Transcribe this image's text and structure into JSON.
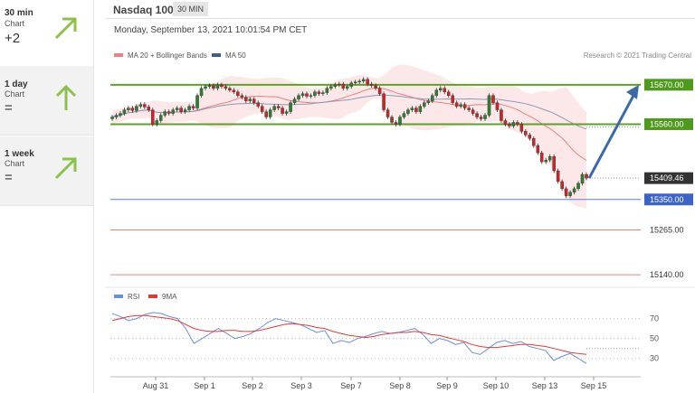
{
  "sidebar": {
    "items": [
      {
        "period": "30 min",
        "type": "Chart",
        "value": "+2",
        "direction": "up-right",
        "color": "#8bc34a"
      },
      {
        "period": "1 day",
        "type": "Chart",
        "value": "=",
        "direction": "up",
        "color": "#8bc34a"
      },
      {
        "period": "1 week",
        "type": "Chart",
        "value": "=",
        "direction": "up-right",
        "color": "#8bc34a"
      }
    ]
  },
  "header": {
    "title": "Nasdaq 100",
    "interval": "30 MIN",
    "datetime": "Monday, September 13, 2021 10:01:54 PM CET"
  },
  "chart_data": [
    {
      "type": "candlestick",
      "legend": [
        {
          "name": "MA 20 + Bollinger Bands",
          "color": "#f08080"
        },
        {
          "name": "MA 50",
          "color": "#3a5ba0"
        }
      ],
      "credit": "Research © 2021 Trading Central",
      "x_tick_labels": [
        "Aug 31",
        "Sep 1",
        "Sep 2",
        "Sep 3",
        "Sep 7",
        "Sep 8",
        "Sep 9",
        "Sep 10",
        "Sep 13",
        "Sep 15"
      ],
      "ylim": [
        15115,
        15725
      ],
      "levels": [
        {
          "label": "15670.00",
          "value": 15670,
          "kind": "resistance",
          "color": "#5aa51f"
        },
        {
          "label": "15560.00",
          "value": 15560,
          "kind": "resistance",
          "color": "#5aa51f"
        },
        {
          "label": "15409.46",
          "value": 15409.46,
          "kind": "last-price",
          "color": "#333333"
        },
        {
          "label": "15350.00",
          "value": 15350,
          "kind": "support",
          "color": "#5b7fd6"
        },
        {
          "label": "15265.00",
          "value": 15265,
          "kind": "support",
          "color": "#f08080"
        },
        {
          "label": "15140.00",
          "value": 15140,
          "kind": "support",
          "color": "#f08080"
        }
      ],
      "target_arrow": {
        "from": 15409.46,
        "to": 15670,
        "color": "#3a6aa8"
      },
      "close": [
        15580,
        15585,
        15590,
        15600,
        15605,
        15598,
        15610,
        15615,
        15608,
        15600,
        15560,
        15570,
        15585,
        15595,
        15590,
        15600,
        15605,
        15595,
        15600,
        15610,
        15605,
        15640,
        15660,
        15665,
        15668,
        15660,
        15670,
        15665,
        15660,
        15655,
        15650,
        15640,
        15635,
        15625,
        15630,
        15620,
        15610,
        15595,
        15580,
        15600,
        15610,
        15605,
        15590,
        15595,
        15620,
        15630,
        15640,
        15645,
        15638,
        15640,
        15650,
        15645,
        15648,
        15660,
        15665,
        15670,
        15672,
        15660,
        15665,
        15675,
        15678,
        15680,
        15685,
        15672,
        15668,
        15660,
        15645,
        15600,
        15580,
        15565,
        15560,
        15580,
        15590,
        15600,
        15605,
        15595,
        15610,
        15620,
        15625,
        15640,
        15655,
        15660,
        15650,
        15640,
        15620,
        15610,
        15615,
        15605,
        15600,
        15590,
        15580,
        15575,
        15585,
        15640,
        15620,
        15600,
        15570,
        15560,
        15555,
        15565,
        15560,
        15540,
        15530,
        15520,
        15500,
        15480,
        15455,
        15460,
        15470,
        15430,
        15400,
        15380,
        15360,
        15370,
        15380,
        15395,
        15420,
        15409.46
      ]
    },
    {
      "type": "line",
      "legend": [
        {
          "name": "RSI",
          "color": "#6b8fe0"
        },
        {
          "name": "9MA",
          "color": "#e53935"
        }
      ],
      "ylim": [
        18,
        85
      ],
      "y_tick_labels": [
        "70",
        "50",
        "30"
      ],
      "y_ticks": [
        70,
        50,
        30
      ],
      "series": [
        {
          "name": "RSI",
          "values": [
            75,
            72,
            68,
            70,
            74,
            76,
            75,
            72,
            70,
            60,
            45,
            50,
            55,
            60,
            55,
            50,
            52,
            55,
            60,
            66,
            70,
            68,
            66,
            64,
            60,
            56,
            58,
            45,
            48,
            46,
            50,
            52,
            55,
            57,
            55,
            56,
            58,
            60,
            54,
            45,
            50,
            48,
            44,
            46,
            36,
            34,
            40,
            46,
            48,
            45,
            47,
            42,
            40,
            38,
            28,
            32,
            35,
            30,
            25
          ]
        },
        {
          "name": "9MA",
          "values": [
            68,
            70,
            72,
            73,
            73,
            72,
            71,
            70,
            68,
            64,
            60,
            58,
            57,
            57,
            58,
            58,
            57,
            57,
            58,
            60,
            62,
            64,
            65,
            64,
            63,
            61,
            60,
            57,
            55,
            53,
            52,
            51,
            52,
            54,
            55,
            56,
            56,
            57,
            56,
            54,
            53,
            51,
            49,
            47,
            44,
            42,
            41,
            41,
            42,
            43,
            44,
            44,
            43,
            42,
            40,
            38,
            36,
            35,
            34
          ]
        }
      ]
    }
  ]
}
